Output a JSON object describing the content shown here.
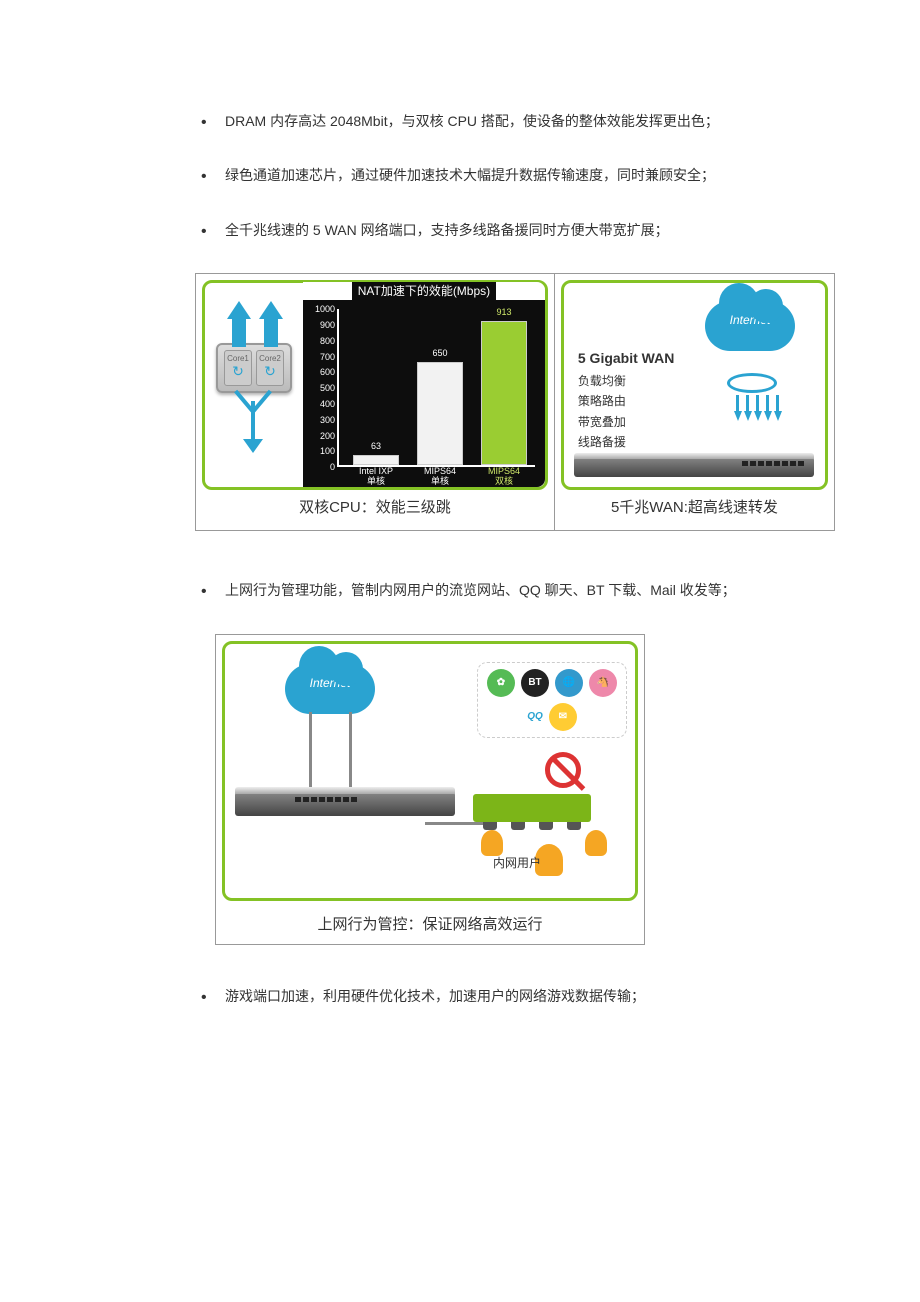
{
  "bullets_top": [
    "DRAM 内存高达 2048Mbit，与双核 CPU 搭配，使设备的整体效能发挥更出色；",
    "绿色通道加速芯片，通过硬件加速技术大幅提升数据传输速度，同时兼顾安全；",
    "全千兆线速的 5 WAN 网络端口，支持多线路备援同时方便大带宽扩展；"
  ],
  "bullets_mid": [
    "上网行为管理功能，管制内网用户的流览网站、QQ 聊天、BT 下载、Mail 收发等；"
  ],
  "bullets_bottom": [
    "游戏端口加速，利用硬件优化技术，加速用户的网络游戏数据传输；"
  ],
  "fig1": {
    "panelA": {
      "cpu_cores": [
        "Core1",
        "Core2"
      ],
      "chart_title": "NAT加速下的效能(Mbps)",
      "ylim": [
        0,
        1000
      ],
      "yticks": [
        0,
        100,
        200,
        300,
        400,
        500,
        600,
        700,
        800,
        900,
        1000
      ],
      "bars": [
        {
          "label": "Intel IXP",
          "sublabel": "单核",
          "value": 63,
          "color": "#f2f2f2",
          "label_color": "#ffffff"
        },
        {
          "label": "MIPS64",
          "sublabel": "单核",
          "value": 650,
          "color": "#f2f2f2",
          "label_color": "#ffffff"
        },
        {
          "label": "MIPS64",
          "sublabel": "双核",
          "value": 913,
          "color": "#9acd32",
          "label_color": "#cfe86a"
        }
      ],
      "chart_bg": "#0d0d0d",
      "axis_color": "#ffffff",
      "caption": "双核CPU：效能三级跳"
    },
    "panelB": {
      "cloud_label": "Internet",
      "heading": "5 Gigabit WAN",
      "lines": [
        "负载均衡",
        "策略路由",
        "带宽叠加",
        "线路备援"
      ],
      "caption": "5千兆WAN:超高线速转发"
    },
    "border_color": "#84c225"
  },
  "fig2": {
    "cloud_label": "Internet",
    "lan_label": "内网用户",
    "app_labels": [
      "QQ",
      "BT"
    ],
    "caption": "上网行为管控：保证网络高效运行",
    "border_color": "#84c225"
  },
  "colors": {
    "accent_blue": "#2aa3d1",
    "accent_green": "#84c225",
    "forbid": "#d33",
    "person": "#f5a623"
  }
}
